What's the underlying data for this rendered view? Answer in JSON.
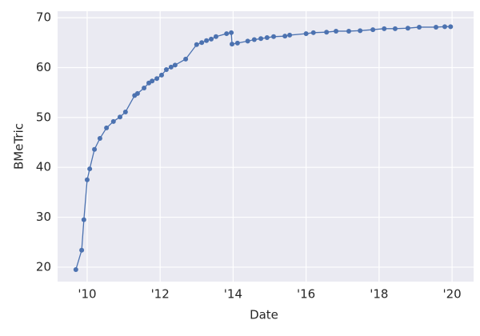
{
  "chart_data": {
    "type": "line",
    "xlabel": "Date",
    "ylabel": "BMeTric",
    "x": [
      2009.69,
      2009.85,
      2009.91,
      2010.0,
      2010.07,
      2010.2,
      2010.35,
      2010.53,
      2010.72,
      2010.9,
      2011.05,
      2011.3,
      2011.38,
      2011.56,
      2011.69,
      2011.78,
      2011.91,
      2012.04,
      2012.17,
      2012.3,
      2012.41,
      2012.7,
      2013.0,
      2013.14,
      2013.27,
      2013.4,
      2013.53,
      2013.82,
      2013.95,
      2013.97,
      2014.12,
      2014.4,
      2014.58,
      2014.76,
      2014.93,
      2015.11,
      2015.42,
      2015.55,
      2016.0,
      2016.2,
      2016.56,
      2016.82,
      2017.17,
      2017.48,
      2017.83,
      2018.14,
      2018.44,
      2018.79,
      2019.1,
      2019.56,
      2019.8,
      2019.96
    ],
    "series": [
      {
        "name": "BMeTric",
        "color": "#4c72b0",
        "values": [
          19.5,
          23.4,
          29.5,
          37.5,
          39.7,
          43.6,
          45.8,
          47.9,
          49.2,
          50.1,
          51.1,
          54.4,
          54.8,
          55.9,
          56.9,
          57.3,
          57.8,
          58.5,
          59.6,
          60.1,
          60.5,
          61.7,
          64.6,
          65.0,
          65.4,
          65.7,
          66.2,
          66.8,
          67.0,
          64.7,
          64.9,
          65.3,
          65.6,
          65.8,
          66.0,
          66.2,
          66.3,
          66.5,
          66.8,
          67.0,
          67.1,
          67.3,
          67.3,
          67.4,
          67.6,
          67.8,
          67.8,
          67.9,
          68.1,
          68.1,
          68.2,
          68.2
        ]
      }
    ],
    "xlim": [
      2009.19,
      2020.59
    ],
    "xticks": [
      {
        "value": 2010,
        "label": "'10"
      },
      {
        "value": 2012,
        "label": "'12"
      },
      {
        "value": 2014,
        "label": "'14"
      },
      {
        "value": 2016,
        "label": "'16"
      },
      {
        "value": 2018,
        "label": "'18"
      },
      {
        "value": 2020,
        "label": "'20"
      }
    ],
    "ylim": [
      17.1,
      71.3
    ],
    "yticks": [
      20,
      30,
      40,
      50,
      60,
      70
    ],
    "grid": true,
    "background": "#eaeaf2"
  }
}
